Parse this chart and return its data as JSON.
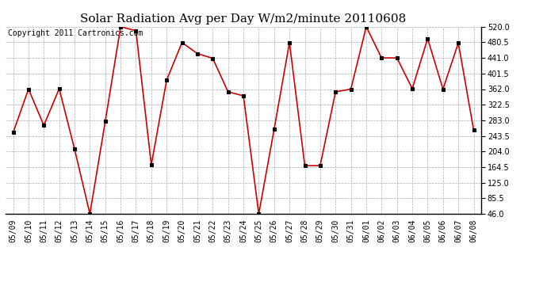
{
  "title": "Solar Radiation Avg per Day W/m2/minute 20110608",
  "copyright": "Copyright 2011 Cartronics.com",
  "dates": [
    "05/09",
    "05/10",
    "05/11",
    "05/12",
    "05/13",
    "05/14",
    "05/15",
    "05/16",
    "05/17",
    "05/18",
    "05/19",
    "05/20",
    "05/21",
    "05/22",
    "05/23",
    "05/24",
    "05/25",
    "05/26",
    "05/27",
    "05/28",
    "05/29",
    "05/30",
    "05/31",
    "06/01",
    "06/02",
    "06/03",
    "06/04",
    "06/05",
    "06/06",
    "06/07",
    "06/08"
  ],
  "values": [
    252,
    362,
    270,
    363,
    210,
    46,
    280,
    520,
    510,
    170,
    385,
    480,
    452,
    440,
    355,
    345,
    46,
    260,
    480,
    168,
    168,
    355,
    362,
    520,
    441,
    441,
    363,
    490,
    362,
    479,
    258
  ],
  "line_color": "#cc0000",
  "marker": "s",
  "marker_size": 3,
  "marker_color": "#000000",
  "background_color": "#ffffff",
  "grid_color": "#aaaaaa",
  "yticks": [
    46.0,
    85.5,
    125.0,
    164.5,
    204.0,
    243.5,
    283.0,
    322.5,
    362.0,
    401.5,
    441.0,
    480.5,
    520.0
  ],
  "ymin": 46.0,
  "ymax": 520.0,
  "title_fontsize": 11,
  "copyright_fontsize": 7,
  "tick_fontsize": 7,
  "ytick_fontsize": 7
}
